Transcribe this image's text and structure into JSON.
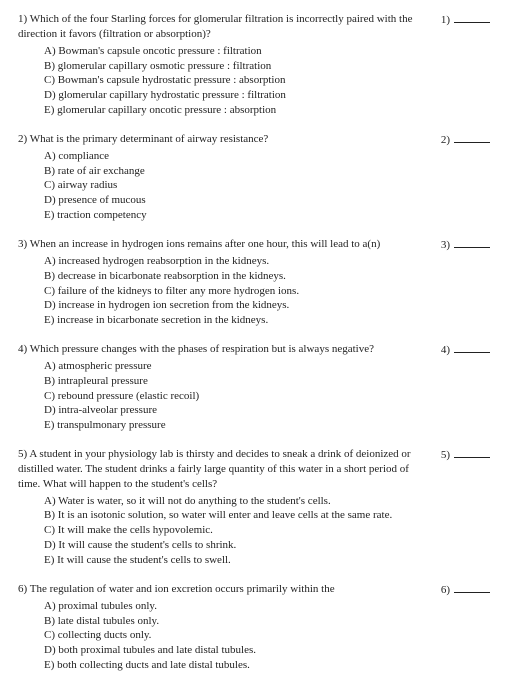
{
  "questions": [
    {
      "num": "1)",
      "text": "Which of the four Starling forces for glomerular filtration is incorrectly paired with the direction it favors (filtration or absorption)?",
      "side": "1)",
      "choices": [
        "A) Bowman's capsule oncotic pressure : filtration",
        "B) glomerular capillary osmotic pressure : filtration",
        "C) Bowman's capsule hydrostatic pressure : absorption",
        "D) glomerular capillary hydrostatic pressure : filtration",
        "E) glomerular capillary oncotic pressure : absorption"
      ]
    },
    {
      "num": "2)",
      "text": "What is the primary determinant of airway resistance?",
      "side": "2)",
      "choices": [
        "A) compliance",
        "B) rate of air exchange",
        "C) airway radius",
        "D) presence of mucous",
        "E) traction competency"
      ]
    },
    {
      "num": "3)",
      "text": "When an increase in hydrogen ions remains after one hour, this will lead to a(n)",
      "side": "3)",
      "choices": [
        "A) increased hydrogen reabsorption in the kidneys.",
        "B) decrease in bicarbonate reabsorption in the kidneys.",
        "C) failure of the kidneys to filter any more hydrogen ions.",
        "D) increase in hydrogen ion secretion from the kidneys.",
        "E) increase in bicarbonate secretion in the kidneys."
      ]
    },
    {
      "num": "4)",
      "text": "Which pressure changes with the phases of respiration but is always negative?",
      "side": "4)",
      "choices": [
        "A) atmospheric pressure",
        "B) intrapleural pressure",
        "C) rebound pressure (elastic recoil)",
        "D) intra-alveolar pressure",
        "E) transpulmonary pressure"
      ]
    },
    {
      "num": "5)",
      "text": "A student in your physiology lab is thirsty and decides to sneak a drink of deionized or distilled water. The student drinks a fairly large quantity of this water in a short period of time. What will happen to the student's cells?",
      "side": "5)",
      "choices": [
        "A) Water is water, so it will not do anything to the student's cells.",
        "B) It is an isotonic solution, so water will enter and leave cells at the same rate.",
        "C) It will make the cells hypovolemic.",
        "D) It will cause the student's cells to shrink.",
        "E) It will cause the student's cells to swell."
      ]
    },
    {
      "num": "6)",
      "text": "The regulation of water and ion excretion occurs primarily within the",
      "side": "6)",
      "choices": [
        "A) proximal tubules only.",
        "B) late distal tubules only.",
        "C) collecting ducts only.",
        "D) both proximal tubules and late distal tubules.",
        "E) both collecting ducts and late distal tubules."
      ]
    }
  ]
}
